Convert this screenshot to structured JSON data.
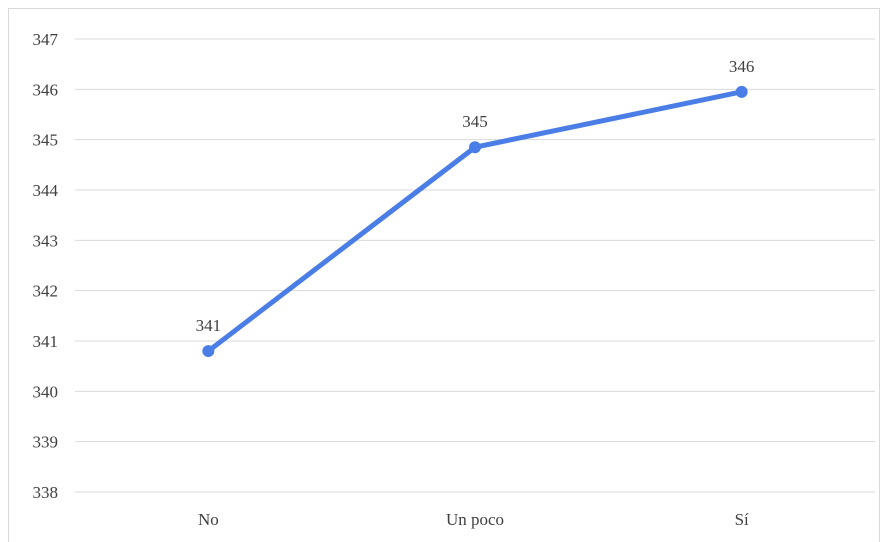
{
  "chart_data": {
    "type": "line",
    "title": "",
    "xlabel": "",
    "ylabel": "",
    "categories": [
      "No",
      "Un poco",
      "Sí"
    ],
    "series": [
      {
        "values": [
          340.8,
          344.85,
          345.95
        ],
        "data_labels": [
          "341",
          "345",
          "346"
        ],
        "color": "#4a7ee6"
      }
    ],
    "ylim": [
      338,
      347
    ],
    "yticks": [
      "338",
      "339",
      "340",
      "341",
      "342",
      "343",
      "344",
      "345",
      "346",
      "347"
    ],
    "grid": true,
    "legend": "none"
  }
}
